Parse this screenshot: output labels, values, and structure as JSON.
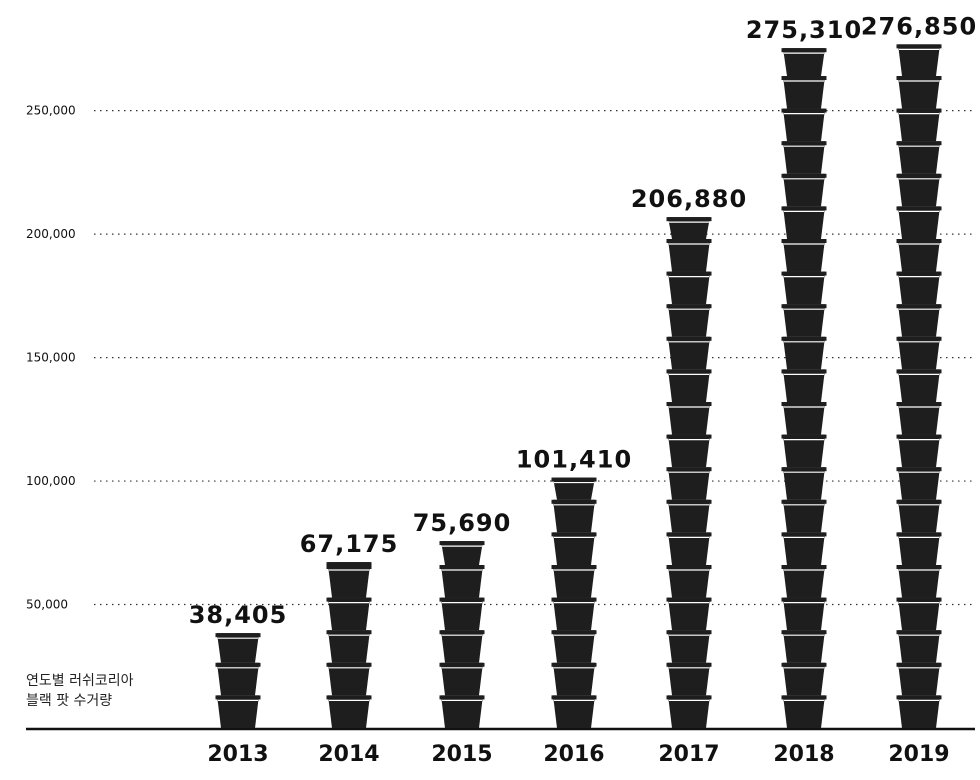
{
  "chart_data": {
    "type": "bar",
    "title": "",
    "categories": [
      "2013",
      "2014",
      "2015",
      "2016",
      "2017",
      "2018",
      "2019"
    ],
    "values": [
      38405,
      67175,
      75690,
      101410,
      206880,
      275310,
      276850
    ],
    "value_labels": [
      "38,405",
      "67,175",
      "75,690",
      "101,410",
      "206,880",
      "275,310",
      "276,850"
    ],
    "yticks": [
      {
        "value": 50000,
        "label": "50,000"
      },
      {
        "value": 100000,
        "label": "100,000"
      },
      {
        "value": 150000,
        "label": "150,000"
      },
      {
        "value": 200000,
        "label": "200,000"
      },
      {
        "value": 250000,
        "label": "250,000"
      }
    ],
    "ylim": [
      0,
      280000
    ],
    "grid": "dotted horizontal",
    "bar_style": "stacked pot icons",
    "bar_color": "#1e1e1e",
    "annotation": [
      "연도별 러쉬코리아",
      "블랙 팟 수거량"
    ]
  }
}
